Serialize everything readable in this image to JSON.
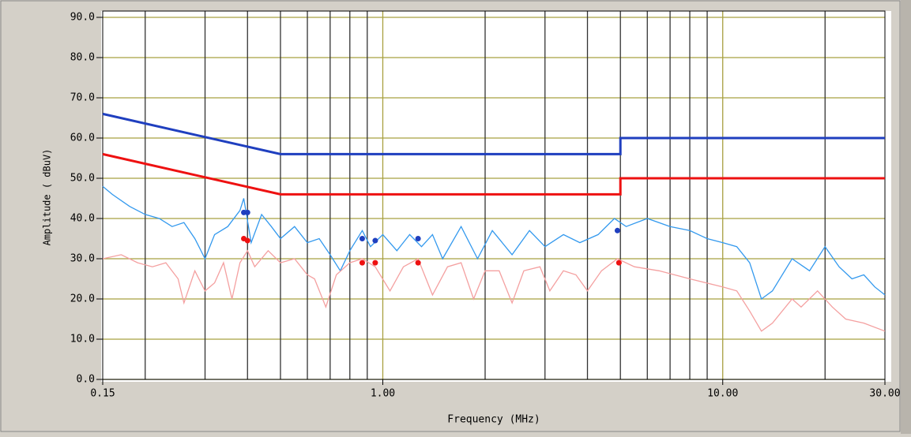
{
  "chart_data": {
    "type": "line",
    "log_x": true,
    "grid": true,
    "xlabel": "Frequency (MHz)",
    "ylabel": "Amplitude ( dBuV)",
    "xlim": [
      0.15,
      30
    ],
    "ylim": [
      0,
      90
    ],
    "xticks": [
      {
        "value": 0.15,
        "label": "0.15"
      },
      {
        "value": 1,
        "label": "1.00"
      },
      {
        "value": 10,
        "label": "10.00"
      },
      {
        "value": 30,
        "label": "30.00"
      }
    ],
    "xgrid": [
      0.2,
      0.3,
      0.4,
      0.5,
      0.6,
      0.7,
      0.8,
      0.9,
      1,
      2,
      3,
      4,
      5,
      6,
      7,
      8,
      9,
      10,
      20
    ],
    "yticks": [
      {
        "value": 0,
        "label": "0.0"
      },
      {
        "value": 10,
        "label": "10.0"
      },
      {
        "value": 20,
        "label": "20.0"
      },
      {
        "value": 30,
        "label": "30.0"
      },
      {
        "value": 40,
        "label": "40.0"
      },
      {
        "value": 50,
        "label": "50.0"
      },
      {
        "value": 60,
        "label": "60.0"
      },
      {
        "value": 70,
        "label": "70.0"
      },
      {
        "value": 80,
        "label": "80.0"
      },
      {
        "value": 90,
        "label": "90.0"
      }
    ],
    "series": [
      {
        "color": "#1f3fbf",
        "width": 3,
        "x": [
          0.15,
          0.5,
          5,
          5,
          30
        ],
        "values": [
          66,
          56,
          56,
          60,
          60
        ]
      },
      {
        "color": "#ee1111",
        "width": 3,
        "x": [
          0.15,
          0.5,
          5,
          5,
          30
        ],
        "values": [
          56,
          46,
          46,
          50,
          50
        ]
      },
      {
        "color": "#3399ee",
        "width": 1.3,
        "x": [
          0.15,
          0.16,
          0.18,
          0.2,
          0.22,
          0.24,
          0.26,
          0.28,
          0.3,
          0.32,
          0.35,
          0.38,
          0.39,
          0.41,
          0.44,
          0.47,
          0.5,
          0.55,
          0.6,
          0.65,
          0.7,
          0.75,
          0.8,
          0.87,
          0.92,
          1.0,
          1.1,
          1.2,
          1.3,
          1.4,
          1.5,
          1.7,
          1.9,
          2.1,
          2.4,
          2.7,
          3,
          3.4,
          3.8,
          4.3,
          4.8,
          5.2,
          6,
          7,
          8,
          9,
          10,
          11,
          12,
          13,
          14,
          16,
          18,
          20,
          22,
          24,
          26,
          28,
          30
        ],
        "values": [
          48,
          46,
          43,
          41,
          40,
          38,
          39,
          35,
          30,
          36,
          38,
          42,
          45,
          34,
          41,
          38,
          35,
          38,
          34,
          35,
          31,
          27,
          32,
          37,
          33,
          36,
          32,
          36,
          33,
          36,
          30,
          38,
          30,
          37,
          31,
          37,
          33,
          36,
          34,
          36,
          40,
          38,
          40,
          38,
          37,
          35,
          34,
          33,
          29,
          20,
          22,
          30,
          27,
          33,
          28,
          25,
          26,
          23,
          21
        ]
      },
      {
        "color": "#f4a0a0",
        "width": 1.3,
        "x": [
          0.15,
          0.17,
          0.19,
          0.21,
          0.23,
          0.25,
          0.26,
          0.28,
          0.3,
          0.32,
          0.34,
          0.36,
          0.38,
          0.4,
          0.42,
          0.46,
          0.5,
          0.55,
          0.6,
          0.63,
          0.68,
          0.73,
          0.8,
          0.87,
          0.95,
          1.05,
          1.15,
          1.27,
          1.4,
          1.55,
          1.7,
          1.85,
          2.0,
          2.2,
          2.4,
          2.6,
          2.9,
          3.1,
          3.4,
          3.7,
          4.0,
          4.4,
          4.9,
          5.5,
          6.5,
          8,
          10,
          11,
          12,
          13,
          14,
          16,
          17,
          19,
          21,
          23,
          26,
          30
        ],
        "values": [
          30,
          31,
          29,
          28,
          29,
          25,
          19,
          27,
          22,
          24,
          29,
          20,
          29,
          32,
          28,
          32,
          29,
          30,
          26,
          25,
          18,
          26,
          29,
          30,
          28,
          22,
          28,
          30,
          21,
          28,
          29,
          20,
          27,
          27,
          19,
          27,
          28,
          22,
          27,
          26,
          22,
          27,
          30,
          28,
          27,
          25,
          23,
          22,
          17,
          12,
          14,
          20,
          18,
          22,
          18,
          15,
          14,
          12
        ]
      }
    ],
    "markers": [
      {
        "color": "#1f3fbf",
        "x": [
          0.39,
          0.4,
          0.87,
          0.95,
          1.27,
          4.9
        ],
        "values": [
          41.5,
          41.5,
          35,
          34.5,
          35,
          37
        ]
      },
      {
        "color": "#ee1111",
        "x": [
          0.39,
          0.4,
          0.87,
          0.95,
          1.27,
          4.95
        ],
        "values": [
          35,
          34.5,
          29,
          29,
          29,
          29
        ]
      }
    ]
  }
}
